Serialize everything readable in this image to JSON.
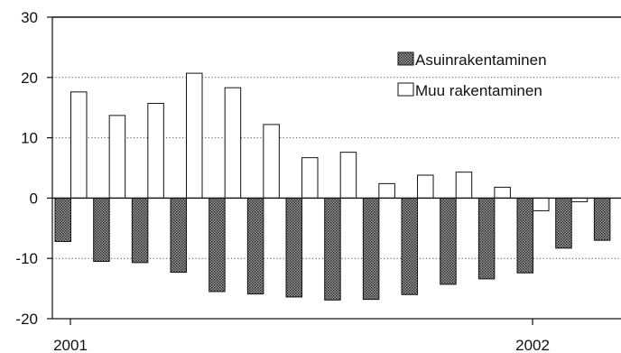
{
  "chart_data": {
    "type": "bar",
    "title": "",
    "xlabel": "",
    "ylabel": "",
    "ylim": [
      -20,
      30
    ],
    "yticks": [
      -20,
      -10,
      0,
      10,
      20,
      30
    ],
    "ytick_labels": [
      "-20",
      "-10",
      "0",
      "10",
      "20",
      "30"
    ],
    "xtick_labels": [
      "2001",
      "2002"
    ],
    "months": [
      "2001-01",
      "2001-02",
      "2001-03",
      "2001-04",
      "2001-05",
      "2001-06",
      "2001-07",
      "2001-08",
      "2001-09",
      "2001-10",
      "2001-11",
      "2001-12",
      "2002-01",
      "2002-02",
      "2002-03"
    ],
    "grid": "horizontal dotted",
    "legend_position": "top-right",
    "series": [
      {
        "name": "Asuinrakentaminen",
        "pattern": "dark-hatched",
        "color": "#555555",
        "values": [
          -7.2,
          -10.5,
          -10.7,
          -12.3,
          -15.5,
          -15.9,
          -16.4,
          -16.9,
          -16.8,
          -16.0,
          -14.3,
          -13.4,
          -12.4,
          -8.3,
          -7.0
        ]
      },
      {
        "name": "Muu rakentaminen",
        "pattern": "white",
        "color": "#ffffff",
        "values": [
          17.6,
          13.7,
          15.7,
          20.7,
          18.3,
          12.2,
          6.7,
          7.6,
          2.4,
          3.8,
          4.3,
          1.8,
          -2.1,
          -0.6,
          0
        ]
      }
    ]
  }
}
